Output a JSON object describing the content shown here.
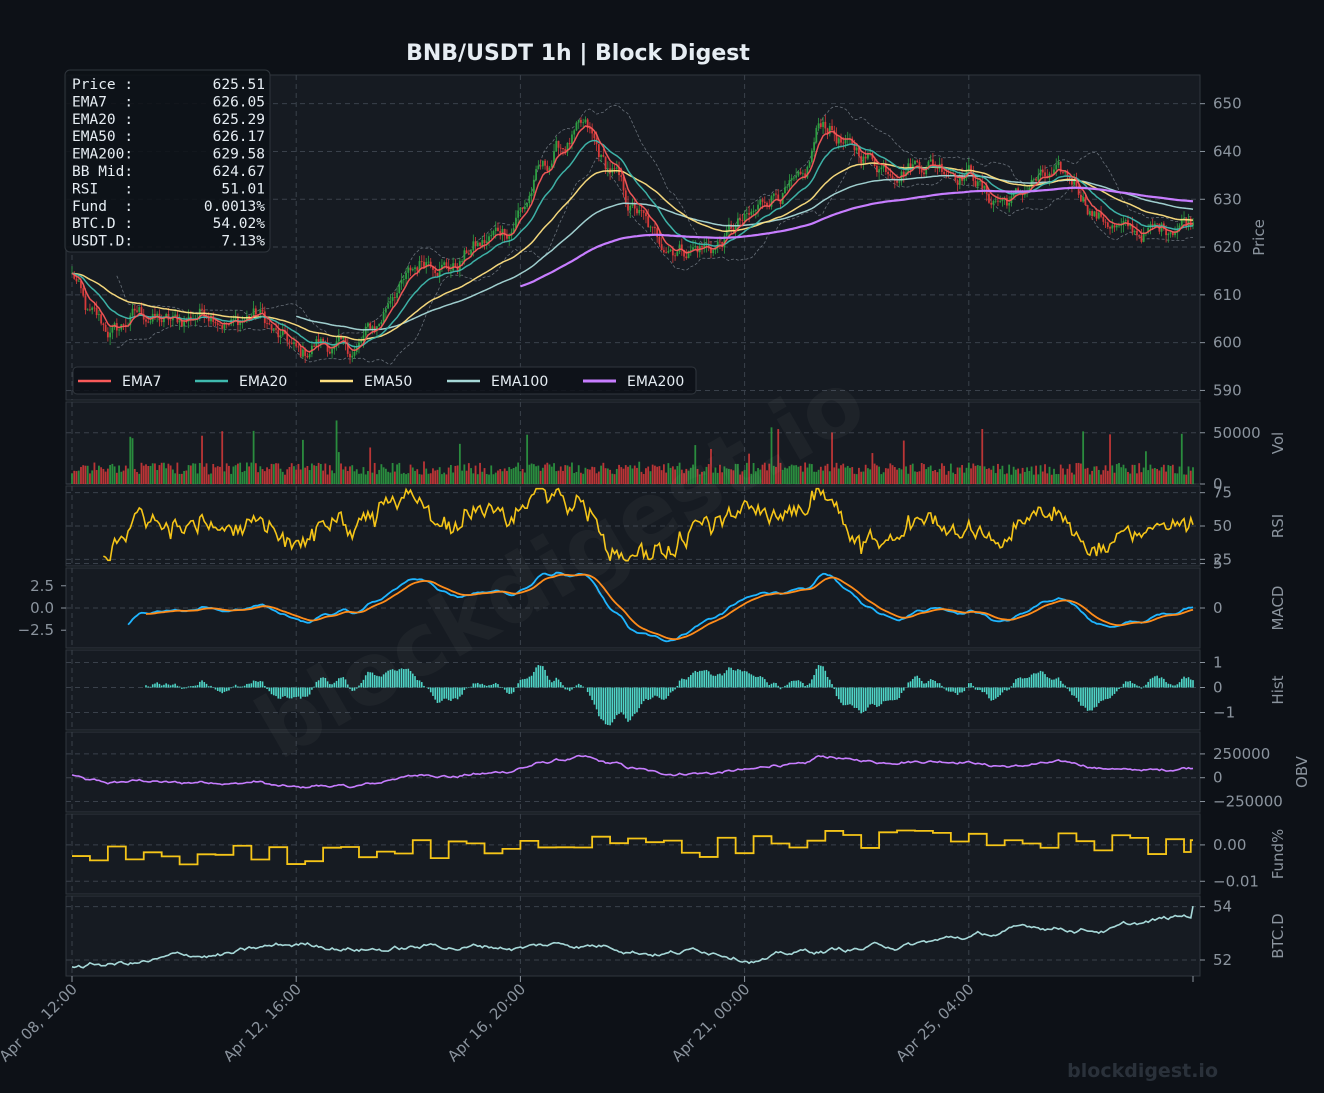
{
  "colors": {
    "background": "#0d1117",
    "panel": "#161b22",
    "grid": "#30363d",
    "text": "#8b949e",
    "ema7": "#f85a5a",
    "ema20": "#3fb9ae",
    "ema50": "#ffe081",
    "ema100": "#a6d8d8",
    "ema200": "#c77dff",
    "bull": "#2ea043",
    "bear": "#d73a3a",
    "rsi": "#f5c518",
    "macd": "#1fb5ff",
    "signal": "#ff8c1a",
    "hist": "#4fd6c8",
    "obv": "#c77dff",
    "fund": "#f5c518",
    "btcd": "#a6d8d8"
  },
  "title": "BNB/USDT  1h  |  Block Digest",
  "watermark": "blockdigest.io",
  "footer_watermark": "blockdigest.io",
  "info_box": [
    {
      "label": "Price :",
      "value": "625.51"
    },
    {
      "label": "EMA7  :",
      "value": "626.05"
    },
    {
      "label": "EMA20 :",
      "value": "625.29"
    },
    {
      "label": "EMA50 :",
      "value": "626.17"
    },
    {
      "label": "EMA200:",
      "value": "629.58"
    },
    {
      "label": "BB Mid:",
      "value": "624.67"
    },
    {
      "label": "RSI   :",
      "value": "51.01"
    },
    {
      "label": "Fund  :",
      "value": "0.0013%"
    },
    {
      "label": "BTC.D :",
      "value": "54.02%"
    },
    {
      "label": "USDT.D:",
      "value": "7.13%"
    }
  ],
  "legend": [
    "EMA7",
    "EMA20",
    "EMA50",
    "EMA100",
    "EMA200"
  ],
  "chart_data": {
    "type": "line",
    "x_ticks": [
      "Apr 08, 12:00",
      "Apr 12, 16:00",
      "Apr 16, 20:00",
      "Apr 21, 00:00",
      "Apr 25, 04:00"
    ],
    "x_tick_positions_hours": [
      0,
      100,
      200,
      300,
      400
    ],
    "x_range_hours": [
      0,
      500
    ],
    "panels": [
      {
        "name": "price",
        "ylabel": "Price",
        "ylim": [
          588,
          656
        ],
        "yticks": [
          590,
          600,
          610,
          620,
          630,
          640,
          650
        ],
        "price_keypoints": [
          [
            0,
            614
          ],
          [
            8,
            605
          ],
          [
            18,
            602
          ],
          [
            30,
            606
          ],
          [
            45,
            604
          ],
          [
            62,
            607
          ],
          [
            72,
            604
          ],
          [
            82,
            606
          ],
          [
            95,
            600
          ],
          [
            102,
            597
          ],
          [
            110,
            600
          ],
          [
            125,
            598
          ],
          [
            135,
            603
          ],
          [
            145,
            612
          ],
          [
            160,
            618
          ],
          [
            170,
            616
          ],
          [
            180,
            620
          ],
          [
            195,
            624
          ],
          [
            200,
            628
          ],
          [
            210,
            636
          ],
          [
            218,
            641
          ],
          [
            228,
            644
          ],
          [
            240,
            636
          ],
          [
            250,
            628
          ],
          [
            262,
            621
          ],
          [
            275,
            620
          ],
          [
            285,
            620
          ],
          [
            300,
            625
          ],
          [
            315,
            632
          ],
          [
            325,
            632
          ],
          [
            335,
            646
          ],
          [
            348,
            640
          ],
          [
            365,
            637
          ],
          [
            380,
            638
          ],
          [
            400,
            636
          ],
          [
            410,
            630
          ],
          [
            420,
            630
          ],
          [
            430,
            634
          ],
          [
            445,
            634
          ],
          [
            460,
            626
          ],
          [
            470,
            623
          ],
          [
            480,
            623
          ],
          [
            498,
            626
          ]
        ],
        "ema7_last": 626.05,
        "ema20_last": 625.29,
        "ema50_last": 626.17,
        "ema200_last": 629.58,
        "ema200_start_hour": 200
      },
      {
        "name": "volume",
        "ylabel": "Vol",
        "ylim": [
          0,
          80000
        ],
        "yticks": [
          0,
          50000
        ]
      },
      {
        "name": "rsi",
        "ylabel": "RSI",
        "ylim": [
          20,
          80
        ],
        "yticks": [
          25,
          50,
          75
        ]
      },
      {
        "name": "macd",
        "ylabel": "MACD",
        "ylim": [
          -4.5,
          4.5
        ],
        "left_yticks": [
          2.5,
          0.0,
          -2.5
        ],
        "left_tick_labels": [
          "2.5",
          "0.0",
          "−2.5"
        ],
        "right_yticks": [
          5,
          0
        ],
        "right_tick_labels": [
          "5",
          "0"
        ]
      },
      {
        "name": "hist",
        "ylabel": "Hist",
        "ylim": [
          -1.7,
          1.5
        ],
        "yticks": [
          1,
          0,
          -1
        ],
        "tick_labels": [
          "1",
          "0",
          "−1"
        ]
      },
      {
        "name": "obv",
        "ylabel": "OBV",
        "ylim": [
          -360000,
          480000
        ],
        "yticks": [
          250000,
          0,
          -250000
        ],
        "tick_labels": [
          "250000",
          "0",
          "−250000"
        ]
      },
      {
        "name": "funding",
        "ylabel": "Fund%",
        "ylim": [
          -0.0135,
          0.0085
        ],
        "yticks": [
          0.0,
          -0.01
        ],
        "tick_labels": [
          "0.00",
          "−0.01"
        ]
      },
      {
        "name": "btc_dominance",
        "ylabel": "BTC.D",
        "ylim": [
          51.4,
          54.4
        ],
        "yticks": [
          54,
          52
        ],
        "tick_labels": [
          "54",
          "52"
        ],
        "last": 54.02
      }
    ]
  }
}
